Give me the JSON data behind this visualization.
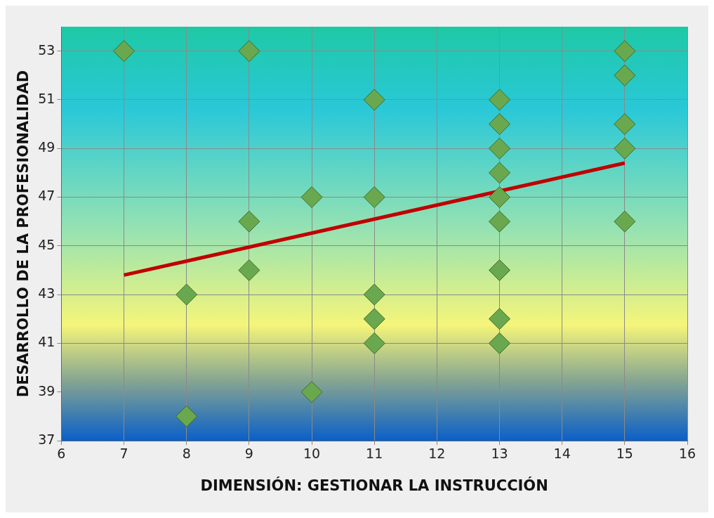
{
  "chart_data": {
    "type": "scatter",
    "xlabel": "DIMENSIÓN: GESTIONAR LA INSTRUCCIÓN",
    "ylabel": "DESARROLLO DE LA PROFESIONALIDAD",
    "xlim": [
      6,
      16
    ],
    "xticks": [
      6,
      7,
      8,
      9,
      10,
      11,
      12,
      13,
      14,
      15,
      16
    ],
    "ylim": [
      37,
      54
    ],
    "yticks": [
      37,
      39,
      41,
      43,
      45,
      47,
      49,
      51,
      53
    ],
    "grid": true,
    "legend": false,
    "marker": "diamond",
    "series": [
      {
        "color": "#6aa84f",
        "x": [
          7,
          8,
          8,
          9,
          9,
          9,
          10,
          10,
          11,
          11,
          11,
          11,
          11,
          13,
          13,
          13,
          13,
          13,
          13,
          13,
          13,
          13,
          15,
          15,
          15,
          15,
          15
        ],
        "values": [
          53,
          43,
          38,
          53,
          46,
          44,
          47,
          39,
          51,
          47,
          43,
          42,
          41,
          51,
          50,
          49,
          48,
          47,
          46,
          44,
          42,
          41,
          53,
          52,
          50,
          49,
          46
        ]
      },
      {
        "type": "line",
        "color": "#c00000",
        "x": [
          7,
          15
        ],
        "values": [
          43.8,
          48.4
        ],
        "marker": "none"
      }
    ]
  }
}
